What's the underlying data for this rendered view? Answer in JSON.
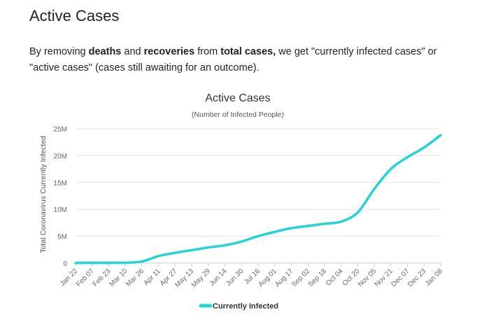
{
  "page": {
    "heading": "Active Cases",
    "intro": {
      "p1": "By removing ",
      "b1": "deaths",
      "p2": " and ",
      "b2": "recoveries",
      "p3": " from ",
      "b3": "total cases,",
      "p4": " we get \"currently infected cases\" or \"active cases\" (cases still awaiting for an outcome)."
    }
  },
  "chart_data": {
    "type": "line",
    "title": "Active Cases",
    "subtitle": "(Number of Infected People)",
    "xlabel": "",
    "ylabel": "Total Coronavirus Currently Infected",
    "y_ticks": [
      "0",
      "5M",
      "10M",
      "15M",
      "20M",
      "25M"
    ],
    "ylim": [
      0,
      25000000
    ],
    "grid": true,
    "legend": "bottom-center",
    "series_color": "#21d5d5",
    "categories": [
      "Jan 22",
      "Feb 07",
      "Feb 23",
      "Mar 10",
      "Mar 26",
      "Apr 11",
      "Apr 27",
      "May 13",
      "May 29",
      "Jun 14",
      "Jun 30",
      "Jul 16",
      "Aug 01",
      "Aug 17",
      "Sep 02",
      "Sep 18",
      "Oct 04",
      "Oct 20",
      "Nov 05",
      "Nov 21",
      "Dec 07",
      "Dec 23",
      "Jan 08"
    ],
    "series": [
      {
        "name": "Currently Infected",
        "values": [
          10000,
          35000,
          45000,
          60000,
          280000,
          1300000,
          1900000,
          2400000,
          2900000,
          3300000,
          4000000,
          5000000,
          5800000,
          6500000,
          6900000,
          7300000,
          7700000,
          9400000,
          13800000,
          17500000,
          19700000,
          21500000,
          23800000
        ]
      }
    ]
  }
}
